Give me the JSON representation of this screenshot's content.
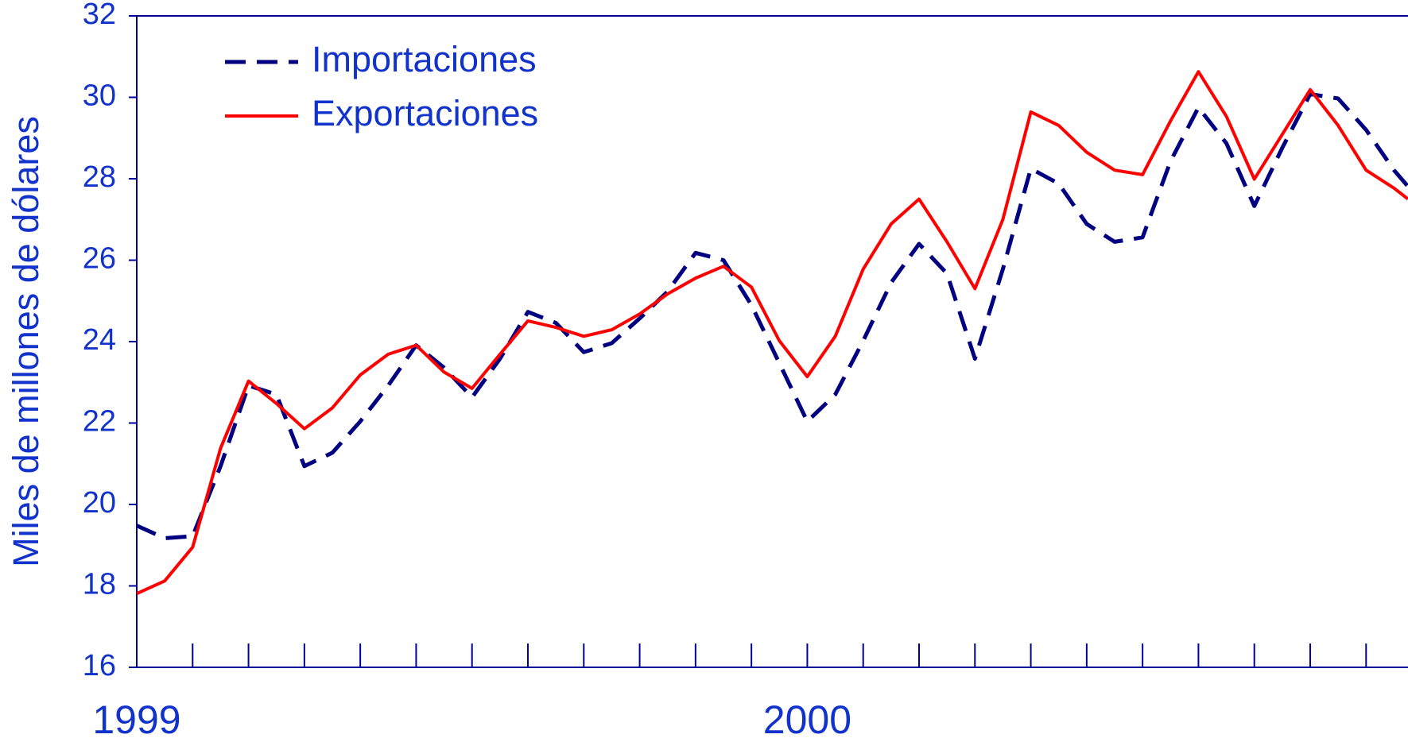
{
  "chart_data": {
    "type": "line",
    "y_label": "Miles de millones de dólares",
    "x": [
      0,
      0.5,
      1,
      1.5,
      2,
      2.5,
      3,
      3.5,
      4,
      4.5,
      5,
      5.5,
      6,
      6.5,
      7,
      7.5,
      8,
      8.5,
      9,
      9.5,
      10,
      10.5,
      11,
      11.5,
      12,
      12.5,
      13,
      13.5,
      14,
      14.5,
      15,
      15.5,
      16,
      16.5,
      17,
      17.5,
      18,
      18.5,
      19,
      19.5,
      20,
      20.5,
      21,
      21.5,
      22,
      22.5,
      22.75
    ],
    "series": [
      {
        "name": "Importaciones",
        "color": "#000080",
        "dash": true,
        "values": [
          19.48,
          19.17,
          19.22,
          20.94,
          22.92,
          22.7,
          20.94,
          21.27,
          22.04,
          22.92,
          23.91,
          23.36,
          22.63,
          23.58,
          24.73,
          24.46,
          23.74,
          23.96,
          24.57,
          25.23,
          26.18,
          26.0,
          24.9,
          23.47,
          22.04,
          22.7,
          24.02,
          25.45,
          26.4,
          25.67,
          23.58,
          25.78,
          28.25,
          27.88,
          26.89,
          26.45,
          26.56,
          28.43,
          29.75,
          28.87,
          27.33,
          28.76,
          30.08,
          29.97,
          29.2,
          28.21,
          27.81
        ]
      },
      {
        "name": "Exportaciones",
        "color": "#ff0000",
        "dash": false,
        "values": [
          17.81,
          18.12,
          18.95,
          21.38,
          23.03,
          22.48,
          21.86,
          22.37,
          23.18,
          23.69,
          23.91,
          23.25,
          22.85,
          23.69,
          24.51,
          24.35,
          24.13,
          24.29,
          24.68,
          25.17,
          25.56,
          25.85,
          25.34,
          24.02,
          23.14,
          24.13,
          25.78,
          26.89,
          27.5,
          26.45,
          25.3,
          27.0,
          29.64,
          29.31,
          28.65,
          28.21,
          28.1,
          29.42,
          30.63,
          29.53,
          27.99,
          29.09,
          30.19,
          29.31,
          28.21,
          27.77,
          27.5
        ]
      }
    ],
    "xlim": [
      0,
      22.75
    ],
    "xticks": [
      0,
      1,
      2,
      3,
      4,
      5,
      6,
      7,
      8,
      9,
      10,
      11,
      12,
      13,
      14,
      15,
      16,
      17,
      18,
      19,
      20,
      21,
      22
    ],
    "xlabels": [
      {
        "value": 0,
        "label": "1999"
      },
      {
        "value": 12,
        "label": "2000"
      }
    ],
    "ylim": [
      16,
      32
    ],
    "yticks": [
      16,
      18,
      20,
      22,
      24,
      26,
      28,
      30,
      32
    ],
    "legend": "top-left"
  }
}
